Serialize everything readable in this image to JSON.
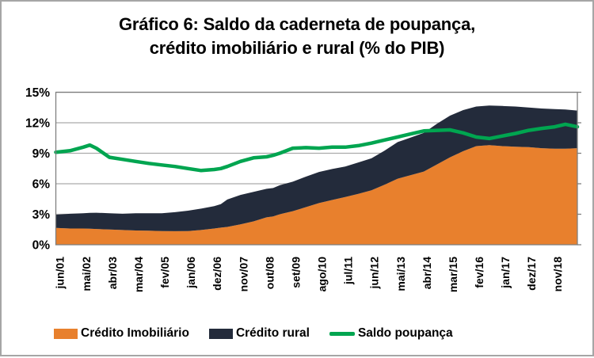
{
  "title": {
    "line1": "Gráfico 6: Saldo da caderneta de poupança,",
    "line2": "crédito imobiliário e rural (% do PIB)"
  },
  "legend": [
    {
      "label": "Crédito Imobiliário",
      "swatch": "area"
    },
    {
      "label": "Crédito rural",
      "swatch": "area"
    },
    {
      "label": "Saldo poupança",
      "swatch": "line"
    }
  ],
  "colors": {
    "imobiliario": "#E8802D",
    "rural": "#232B3B",
    "poupanca": "#00A550",
    "gridline": "#ababab",
    "plot_border": "#7f7f7f",
    "text": "#000000"
  },
  "chart_data": {
    "type": "area",
    "title": "Gráfico 6: Saldo da caderneta de poupança, crédito imobiliário e rural (% do PIB)",
    "ylabel": "% do PIB",
    "ylim": [
      0,
      15
    ],
    "y_tick_labels": [
      "0%",
      "3%",
      "6%",
      "9%",
      "12%",
      "15%"
    ],
    "y_ticks": [
      0,
      3,
      6,
      9,
      12,
      15
    ],
    "grid": "horizontal",
    "legend_position": "bottom",
    "x_tick_labels": [
      "jun/01",
      "mai/02",
      "abr/03",
      "mar/04",
      "fev/05",
      "jan/06",
      "dez/06",
      "nov/07",
      "out/08",
      "set/09",
      "ago/10",
      "jul/11",
      "jun/12",
      "mai/13",
      "abr/14",
      "mar/15",
      "fev/16",
      "jan/17",
      "dez/17",
      "nov/18"
    ],
    "x_unit": "tick index (ticks are 11 months apart, jun/01 to nov/18; data extends to early 2019)",
    "x": [
      0,
      0.5,
      1,
      1.25,
      1.5,
      2,
      2.5,
      3,
      3.5,
      4,
      4.5,
      5,
      5.5,
      6,
      6.25,
      6.5,
      7,
      7.5,
      8,
      8.25,
      8.5,
      9,
      9.5,
      10,
      10.5,
      11,
      11.5,
      12,
      12.5,
      13,
      13.5,
      14,
      14.5,
      15,
      15.5,
      16,
      16.5,
      17,
      17.5,
      18,
      18.5,
      19,
      19.4,
      19.8
    ],
    "series": [
      {
        "name": "Crédito Imobiliário",
        "render": "area-stacked",
        "color": "#E8802D",
        "values": [
          1.65,
          1.6,
          1.6,
          1.58,
          1.55,
          1.5,
          1.45,
          1.4,
          1.38,
          1.35,
          1.33,
          1.35,
          1.45,
          1.6,
          1.68,
          1.75,
          2.0,
          2.3,
          2.7,
          2.78,
          3.0,
          3.3,
          3.7,
          4.1,
          4.4,
          4.7,
          5.0,
          5.35,
          5.9,
          6.5,
          6.85,
          7.2,
          7.9,
          8.6,
          9.2,
          9.7,
          9.8,
          9.7,
          9.65,
          9.6,
          9.5,
          9.45,
          9.45,
          9.5
        ]
      },
      {
        "name": "Crédito rural",
        "render": "area-stacked",
        "color": "#232B3B",
        "values": [
          1.3,
          1.45,
          1.5,
          1.55,
          1.6,
          1.6,
          1.6,
          1.7,
          1.72,
          1.75,
          1.87,
          2.0,
          2.1,
          2.2,
          2.32,
          2.7,
          2.9,
          2.9,
          2.8,
          2.8,
          2.85,
          2.9,
          3.0,
          3.06,
          3.05,
          3.0,
          3.1,
          3.15,
          3.35,
          3.6,
          3.7,
          3.8,
          4.0,
          4.1,
          4.05,
          3.9,
          3.9,
          3.95,
          3.95,
          3.9,
          3.9,
          3.9,
          3.85,
          3.7
        ]
      },
      {
        "name": "Saldo poupança",
        "render": "line",
        "color": "#00A550",
        "values": [
          9.1,
          9.25,
          9.6,
          9.8,
          9.5,
          8.6,
          8.4,
          8.2,
          8.0,
          7.85,
          7.7,
          7.5,
          7.3,
          7.4,
          7.5,
          7.7,
          8.2,
          8.55,
          8.65,
          8.8,
          9.0,
          9.5,
          9.55,
          9.5,
          9.6,
          9.6,
          9.75,
          10.0,
          10.3,
          10.6,
          10.9,
          11.2,
          11.25,
          11.3,
          11.0,
          10.6,
          10.45,
          10.7,
          10.95,
          11.25,
          11.45,
          11.6,
          11.85,
          11.6
        ]
      }
    ]
  }
}
